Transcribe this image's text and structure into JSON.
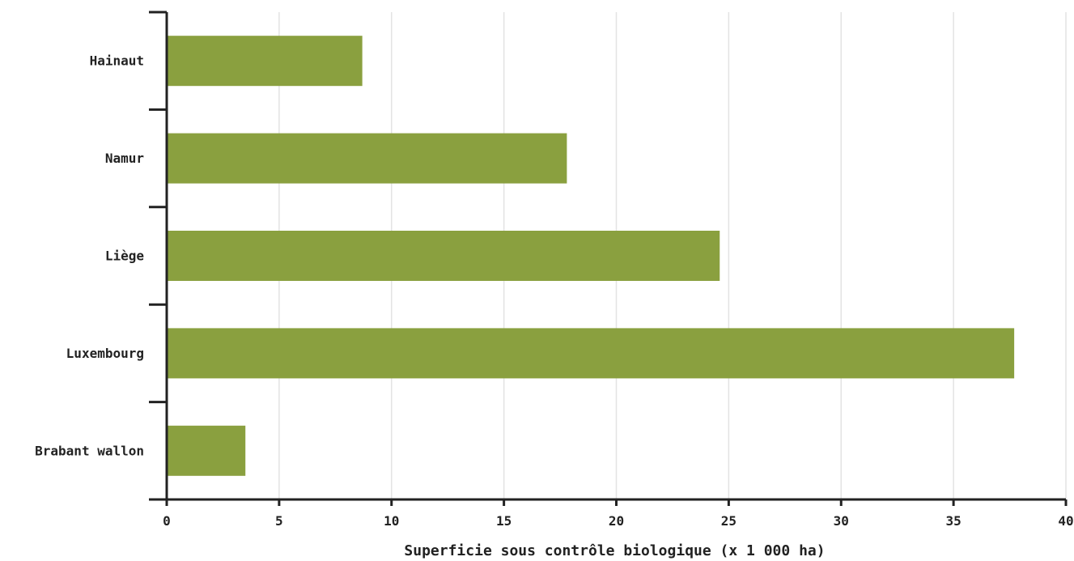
{
  "chart_data": {
    "type": "bar",
    "orientation": "horizontal",
    "categories": [
      "Hainaut",
      "Namur",
      "Liège",
      "Luxembourg",
      "Brabant wallon"
    ],
    "values": [
      8.7,
      17.8,
      24.6,
      37.7,
      3.5
    ],
    "title": "",
    "xlabel": "Superficie sous contrôle biologique (x 1 000 ha)",
    "ylabel": "",
    "xlim": [
      0,
      40
    ],
    "x_ticks": [
      0,
      5,
      10,
      15,
      20,
      25,
      30,
      35,
      40
    ],
    "grid": "vertical",
    "legend": "none",
    "bar_color": "#8aa03f"
  }
}
